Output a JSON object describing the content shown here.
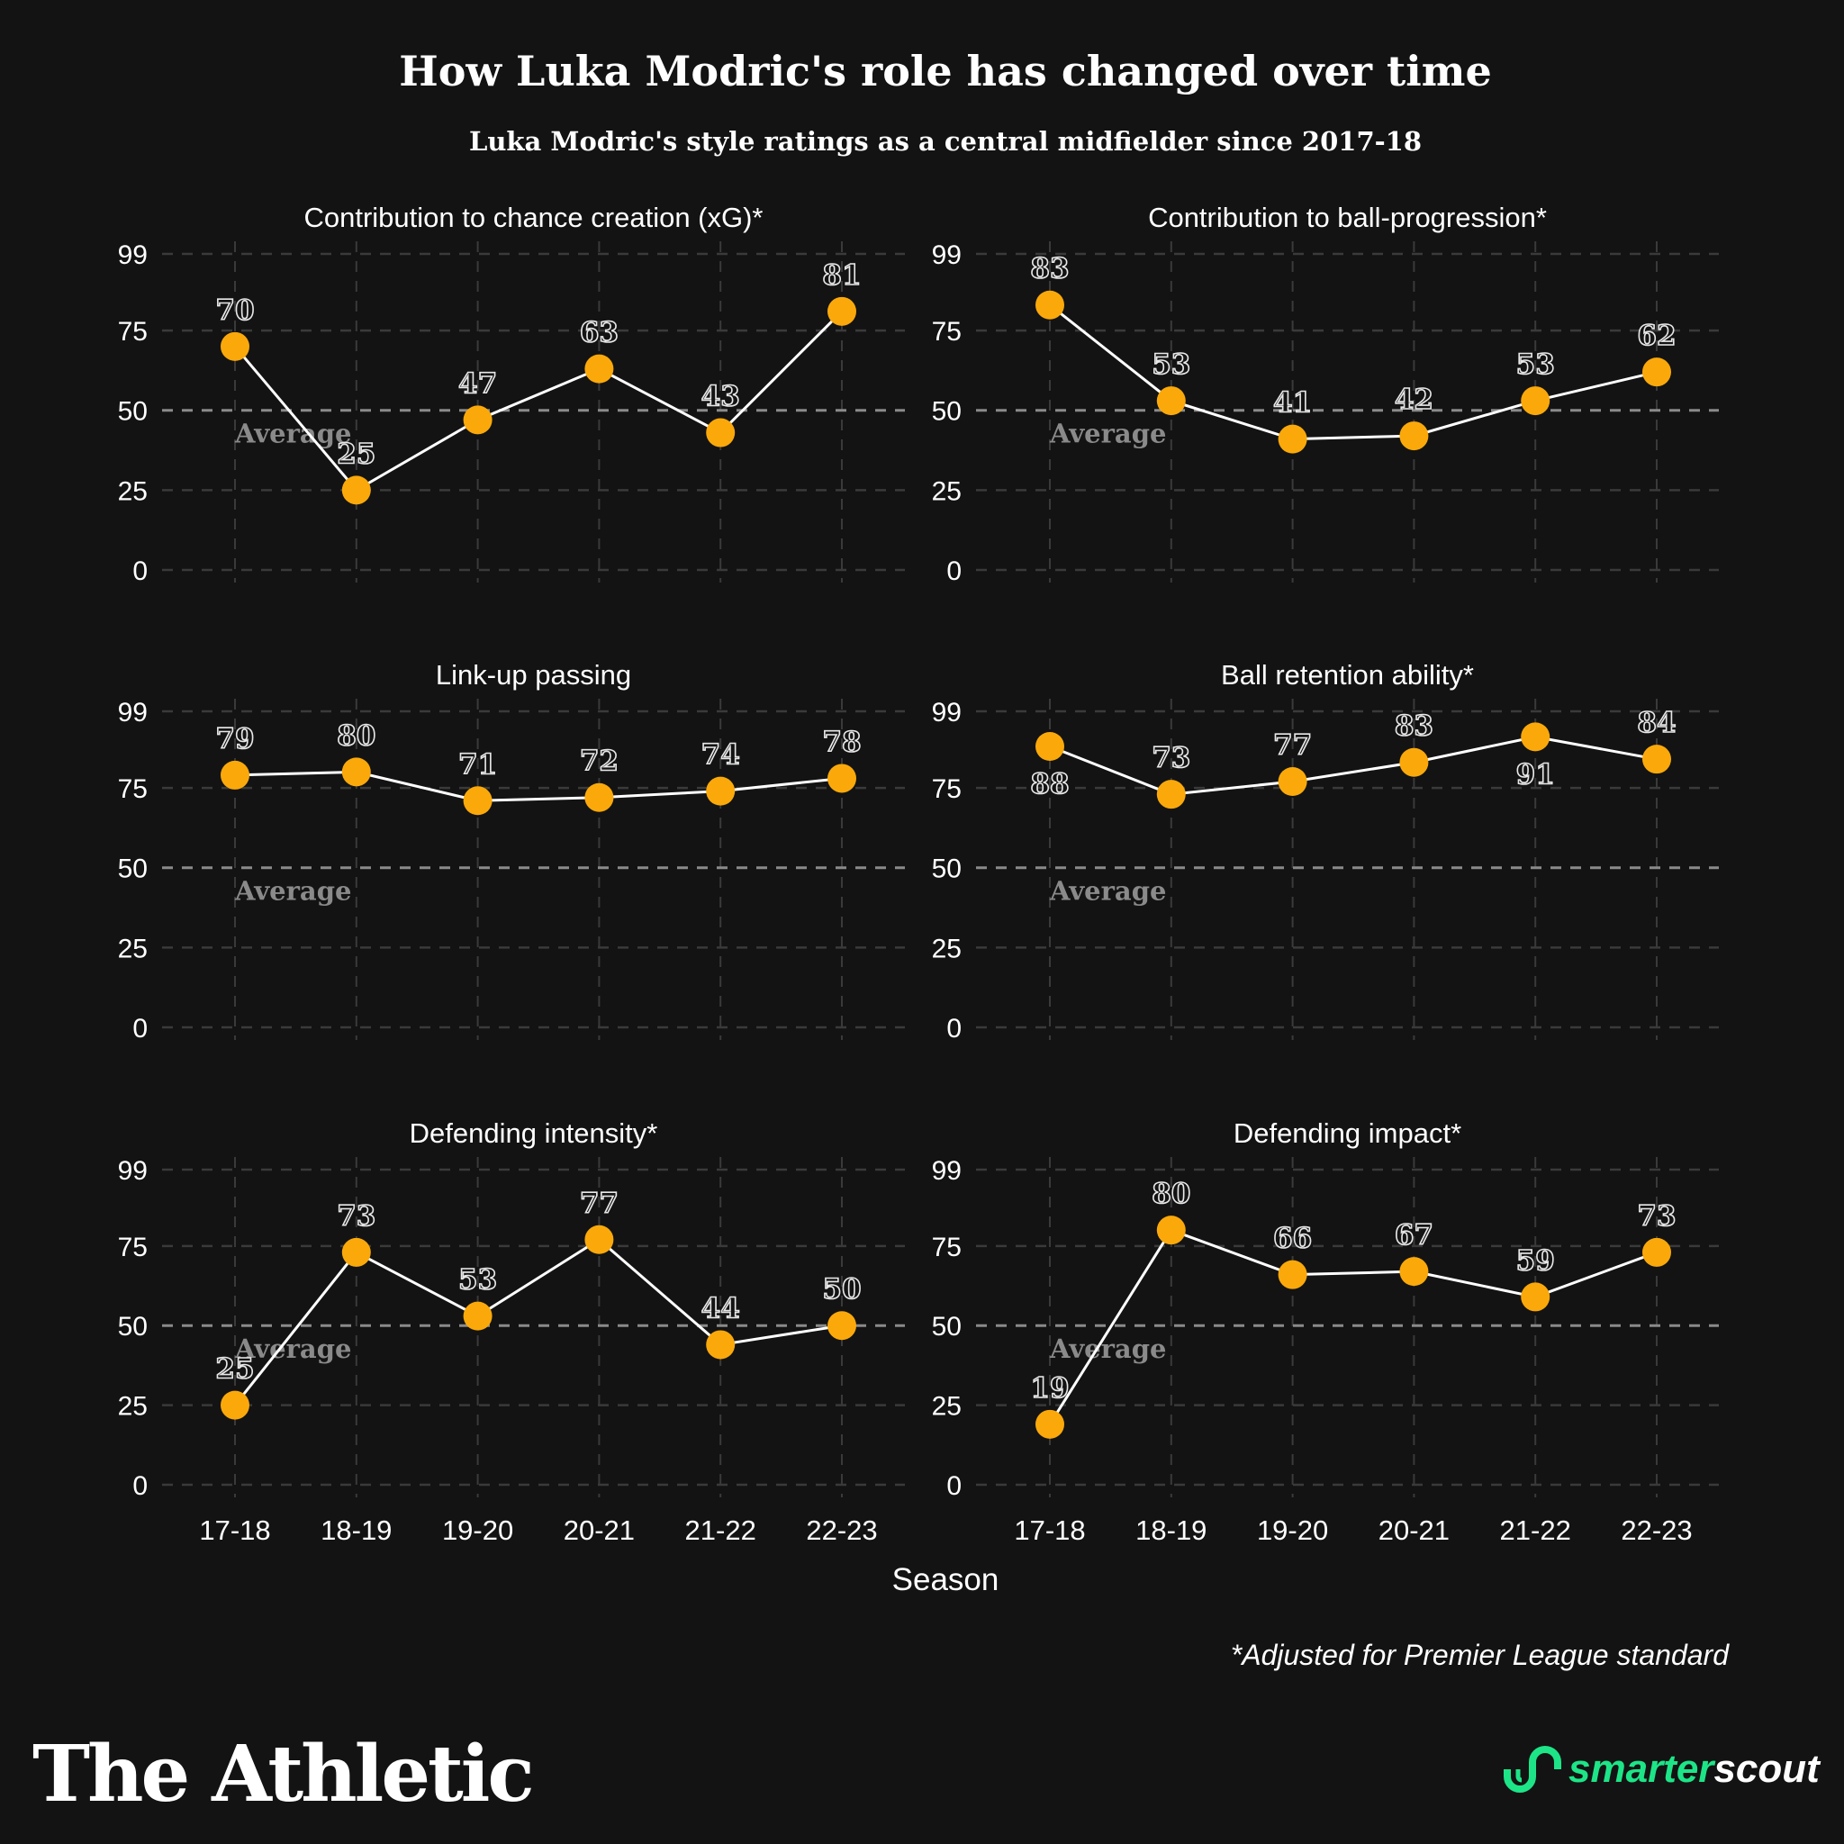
{
  "title": "How Luka Modric's role has changed over time",
  "subtitle": "Luka Modric's style ratings as a central midfielder since 2017-18",
  "footnote": "*Adjusted for Premier League standard",
  "logos": {
    "athletic": "The Athletic",
    "smarterscout_a": "smarter",
    "smarterscout_b": "scout"
  },
  "colors": {
    "background": "#131313",
    "point": "#FBA90A",
    "line": "#ffffff",
    "average": "#8a8a8a",
    "brand_green": "#1de587"
  },
  "chart_data": [
    {
      "type": "line",
      "title": "Contribution to chance creation (xG)*",
      "categories": [
        "17-18",
        "18-19",
        "19-20",
        "20-21",
        "21-22",
        "22-23"
      ],
      "values": [
        70,
        25,
        47,
        63,
        43,
        81
      ],
      "yticks": [
        0,
        25,
        50,
        75,
        99
      ],
      "ylim": [
        0,
        99
      ],
      "xlabel": "Season",
      "reference": {
        "value": 50,
        "label": "Average"
      },
      "grid": true
    },
    {
      "type": "line",
      "title": "Contribution to ball-progression*",
      "categories": [
        "17-18",
        "18-19",
        "19-20",
        "20-21",
        "21-22",
        "22-23"
      ],
      "values": [
        83,
        53,
        41,
        42,
        53,
        62
      ],
      "yticks": [
        0,
        25,
        50,
        75,
        99
      ],
      "ylim": [
        0,
        99
      ],
      "xlabel": "Season",
      "reference": {
        "value": 50,
        "label": "Average"
      },
      "grid": true
    },
    {
      "type": "line",
      "title": "Link-up passing",
      "categories": [
        "17-18",
        "18-19",
        "19-20",
        "20-21",
        "21-22",
        "22-23"
      ],
      "values": [
        79,
        80,
        71,
        72,
        74,
        78
      ],
      "yticks": [
        0,
        25,
        50,
        75,
        99
      ],
      "ylim": [
        0,
        99
      ],
      "xlabel": "Season",
      "reference": {
        "value": 50,
        "label": "Average"
      },
      "grid": true
    },
    {
      "type": "line",
      "title": "Ball retention ability*",
      "categories": [
        "17-18",
        "18-19",
        "19-20",
        "20-21",
        "21-22",
        "22-23"
      ],
      "values": [
        88,
        73,
        77,
        83,
        91,
        84
      ],
      "yticks": [
        0,
        25,
        50,
        75,
        99
      ],
      "ylim": [
        0,
        99
      ],
      "xlabel": "Season",
      "reference": {
        "value": 50,
        "label": "Average"
      },
      "grid": true
    },
    {
      "type": "line",
      "title": "Defending intensity*",
      "categories": [
        "17-18",
        "18-19",
        "19-20",
        "20-21",
        "21-22",
        "22-23"
      ],
      "values": [
        25,
        73,
        53,
        77,
        44,
        50
      ],
      "yticks": [
        0,
        25,
        50,
        75,
        99
      ],
      "ylim": [
        0,
        99
      ],
      "xlabel": "Season",
      "reference": {
        "value": 50,
        "label": "Average"
      },
      "grid": true
    },
    {
      "type": "line",
      "title": "Defending impact*",
      "categories": [
        "17-18",
        "18-19",
        "19-20",
        "20-21",
        "21-22",
        "22-23"
      ],
      "values": [
        19,
        80,
        66,
        67,
        59,
        73
      ],
      "yticks": [
        0,
        25,
        50,
        75,
        99
      ],
      "ylim": [
        0,
        99
      ],
      "xlabel": "Season",
      "reference": {
        "value": 50,
        "label": "Average"
      },
      "grid": true
    }
  ]
}
